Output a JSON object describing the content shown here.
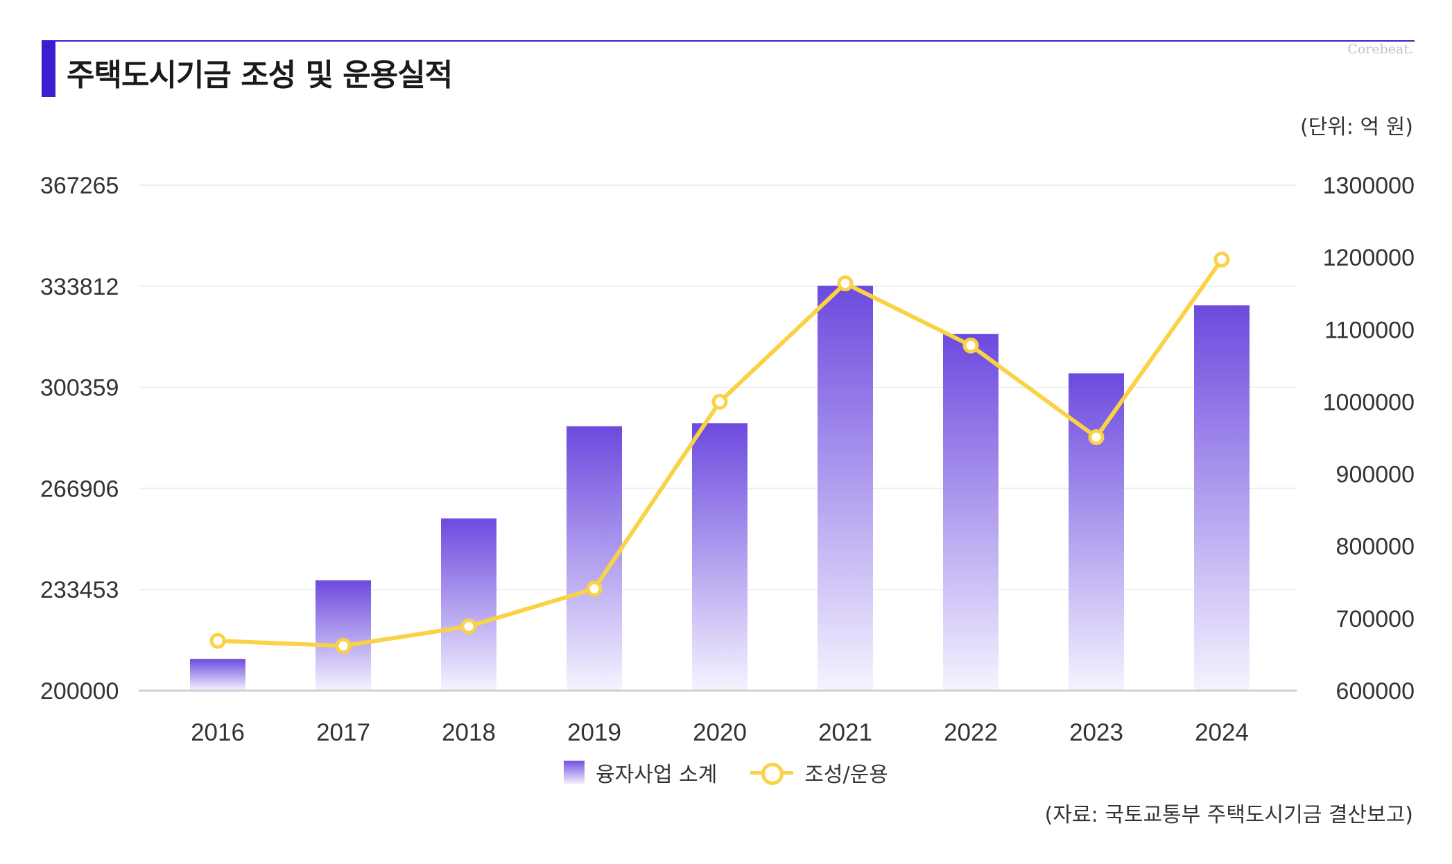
{
  "header": {
    "title": "주택도시기금 조성 및 운용실적",
    "brand": "Corebeat.",
    "unit": "(단위: 억 원)",
    "source": "(자료: 국토교통부 주택도시기금 결산보고)"
  },
  "colors": {
    "accent": "#3a1ecf",
    "bar_top": "#6c4ade",
    "bar_bottom": "#f6f3ff",
    "line": "#fad246"
  },
  "chart_data": {
    "type": "bar",
    "categories": [
      "2016",
      "2017",
      "2018",
      "2019",
      "2020",
      "2021",
      "2022",
      "2023",
      "2024"
    ],
    "series": [
      {
        "name": "융자사업 소계",
        "type": "bar",
        "axis": "left",
        "values": [
          210500,
          236500,
          257000,
          287500,
          288500,
          334000,
          318000,
          305000,
          327500
        ]
      },
      {
        "name": "조성/운용",
        "type": "line",
        "axis": "right",
        "values": [
          669000,
          662000,
          689000,
          741000,
          1000000,
          1164000,
          1078000,
          951000,
          1197000
        ]
      }
    ],
    "yleft": {
      "lim": [
        200000,
        367265
      ],
      "ticks": [
        "200000",
        "233453",
        "266906",
        "300359",
        "333812",
        "367265"
      ]
    },
    "yright": {
      "lim": [
        600000,
        1300000
      ],
      "ticks": [
        "600000",
        "700000",
        "800000",
        "900000",
        "1000000",
        "1100000",
        "1200000",
        "1300000"
      ]
    },
    "grid": true,
    "legend": "bottom-center"
  }
}
